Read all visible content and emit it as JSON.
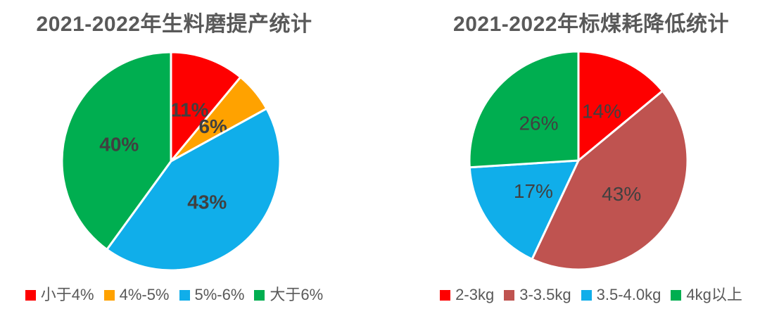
{
  "chart_data": [
    {
      "type": "pie",
      "title": "2021-2022年生料磨提产统计",
      "categories": [
        "小于4%",
        "4%-5%",
        "5%-6%",
        "大于6%"
      ],
      "values": [
        11,
        6,
        43,
        40
      ],
      "data_labels": [
        "11%",
        "6%",
        "43%",
        "40%"
      ],
      "colors": [
        "#fe0000",
        "#ffa200",
        "#10aeea",
        "#00ae50"
      ],
      "start_angle_deg": 0,
      "direction": "clockwise",
      "label_bold": true,
      "legend_position": "bottom"
    },
    {
      "type": "pie",
      "title": "2021-2022年标煤耗降低统计",
      "categories": [
        "2-3kg",
        "3-3.5kg",
        "3.5-4.0kg",
        "4kg以上"
      ],
      "values": [
        14,
        43,
        17,
        26
      ],
      "data_labels": [
        "14%",
        "43%",
        "17%",
        "26%"
      ],
      "colors": [
        "#fe0000",
        "#bf5350",
        "#10aeea",
        "#00ae50"
      ],
      "start_angle_deg": 0,
      "direction": "clockwise",
      "label_bold": false,
      "legend_position": "bottom"
    }
  ],
  "styles": {
    "title_color": "#595959",
    "data_label_color": "#404040",
    "legend_text_color": "#595959",
    "slice_border_color": "#ffffff",
    "background": "#ffffff"
  }
}
